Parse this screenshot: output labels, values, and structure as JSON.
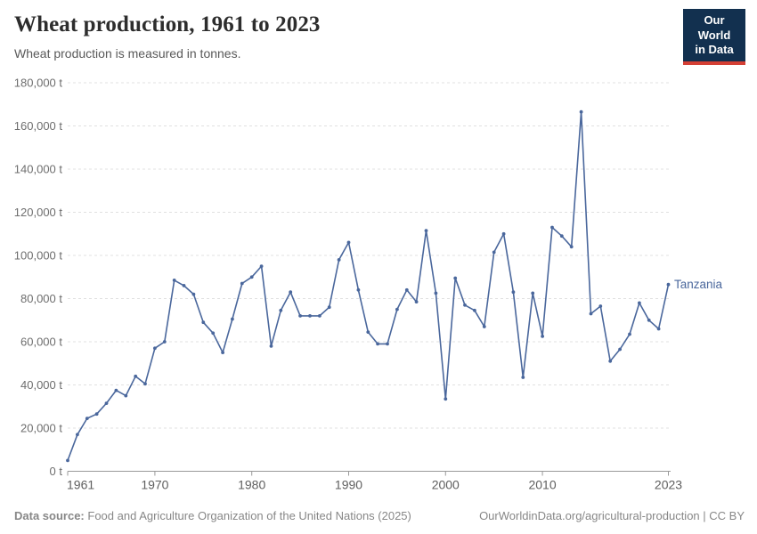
{
  "header": {
    "title": "Wheat production, 1961 to 2023",
    "subtitle": "Wheat production is measured in tonnes.",
    "logo": {
      "line1": "Our World",
      "line2": "in Data"
    }
  },
  "chart_data": {
    "type": "line",
    "title": "Wheat production, 1961 to 2023",
    "unit": "tonnes",
    "unit_suffix": " t",
    "grid": "horizontal-dashed",
    "legend_position": "end-of-line-label",
    "ylim": [
      0,
      180000
    ],
    "xlim": [
      1961,
      2023
    ],
    "y_axis": {
      "ticks": [
        {
          "value": 0,
          "label": "0 t"
        },
        {
          "value": 20000,
          "label": "20,000 t"
        },
        {
          "value": 40000,
          "label": "40,000 t"
        },
        {
          "value": 60000,
          "label": "60,000 t"
        },
        {
          "value": 80000,
          "label": "80,000 t"
        },
        {
          "value": 100000,
          "label": "100,000 t"
        },
        {
          "value": 120000,
          "label": "120,000 t"
        },
        {
          "value": 140000,
          "label": "140,000 t"
        },
        {
          "value": 160000,
          "label": "160,000 t"
        },
        {
          "value": 180000,
          "label": "180,000 t"
        }
      ]
    },
    "x_axis": {
      "ticks": [
        {
          "value": 1961,
          "label": "1961"
        },
        {
          "value": 1970,
          "label": "1970"
        },
        {
          "value": 1980,
          "label": "1980"
        },
        {
          "value": 1990,
          "label": "1990"
        },
        {
          "value": 2000,
          "label": "2000"
        },
        {
          "value": 2010,
          "label": "2010"
        },
        {
          "value": 2023,
          "label": "2023"
        }
      ]
    },
    "series": [
      {
        "name": "Tanzania",
        "color": "#4a679c",
        "x": [
          1961,
          1962,
          1963,
          1964,
          1965,
          1966,
          1967,
          1968,
          1969,
          1970,
          1971,
          1972,
          1973,
          1974,
          1975,
          1976,
          1977,
          1978,
          1979,
          1980,
          1981,
          1982,
          1983,
          1984,
          1985,
          1986,
          1987,
          1988,
          1989,
          1990,
          1991,
          1992,
          1993,
          1994,
          1995,
          1996,
          1997,
          1998,
          1999,
          2000,
          2001,
          2002,
          2003,
          2004,
          2005,
          2006,
          2007,
          2008,
          2009,
          2010,
          2011,
          2012,
          2013,
          2014,
          2015,
          2016,
          2017,
          2018,
          2019,
          2020,
          2021,
          2022,
          2023
        ],
        "values": [
          5000,
          17000,
          24500,
          26500,
          31500,
          37500,
          35000,
          44000,
          40500,
          57000,
          60000,
          88500,
          86000,
          82000,
          69000,
          64000,
          55000,
          70500,
          87000,
          90000,
          95000,
          58000,
          74500,
          83000,
          72000,
          72000,
          72000,
          76000,
          98000,
          106000,
          84000,
          64500,
          59000,
          59000,
          75000,
          84000,
          78500,
          111500,
          82500,
          33500,
          89500,
          77000,
          74500,
          67000,
          101500,
          110000,
          83000,
          43500,
          82500,
          62500,
          113000,
          109000,
          104000,
          166500,
          73000,
          76500,
          51000,
          56500,
          63500,
          78000,
          70000,
          66000,
          86500
        ]
      }
    ],
    "colors": {
      "gridline": "#e0e0e0",
      "axis_line": "#999999",
      "axis_label": "#6e6e6e",
      "x_label": "#5f5f5f"
    }
  },
  "footer": {
    "source_label": "Data source:",
    "source_text": "Food and Agriculture Organization of the United Nations (2025)",
    "link_text": "OurWorldinData.org/agricultural-production | CC BY"
  }
}
